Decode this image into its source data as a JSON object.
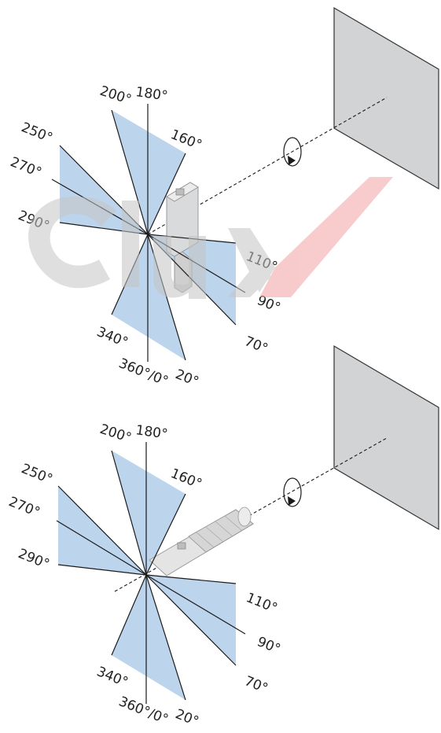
{
  "colors": {
    "sector_fill": "#bcd4ec",
    "panel_fill": "#d2d3d5",
    "watermark_gray": "#c8c8c8",
    "watermark_red": "#f3a8a8"
  },
  "diagram_top": {
    "sensor": "rectangular-sensor-icon",
    "angle_labels": [
      {
        "key": "a200",
        "text": "200°"
      },
      {
        "key": "a180",
        "text": "180°"
      },
      {
        "key": "a160",
        "text": "160°"
      },
      {
        "key": "a250",
        "text": "250°"
      },
      {
        "key": "a270",
        "text": "270°"
      },
      {
        "key": "a290",
        "text": "290°"
      },
      {
        "key": "a110",
        "text": "110°"
      },
      {
        "key": "a90",
        "text": "90°"
      },
      {
        "key": "a70",
        "text": "70°"
      },
      {
        "key": "a340",
        "text": "340°"
      },
      {
        "key": "a360",
        "text": "360°/0°"
      },
      {
        "key": "a20",
        "text": "20°"
      }
    ]
  },
  "diagram_bottom": {
    "sensor": "cylindrical-sensor-icon",
    "angle_labels": [
      {
        "key": "a200",
        "text": "200°"
      },
      {
        "key": "a180",
        "text": "180°"
      },
      {
        "key": "a160",
        "text": "160°"
      },
      {
        "key": "a250",
        "text": "250°"
      },
      {
        "key": "a270",
        "text": "270°"
      },
      {
        "key": "a290",
        "text": "290°"
      },
      {
        "key": "a110",
        "text": "110°"
      },
      {
        "key": "a90",
        "text": "90°"
      },
      {
        "key": "a70",
        "text": "70°"
      },
      {
        "key": "a340",
        "text": "340°"
      },
      {
        "key": "a360",
        "text": "360°/0°"
      },
      {
        "key": "a20",
        "text": "20°"
      }
    ]
  }
}
